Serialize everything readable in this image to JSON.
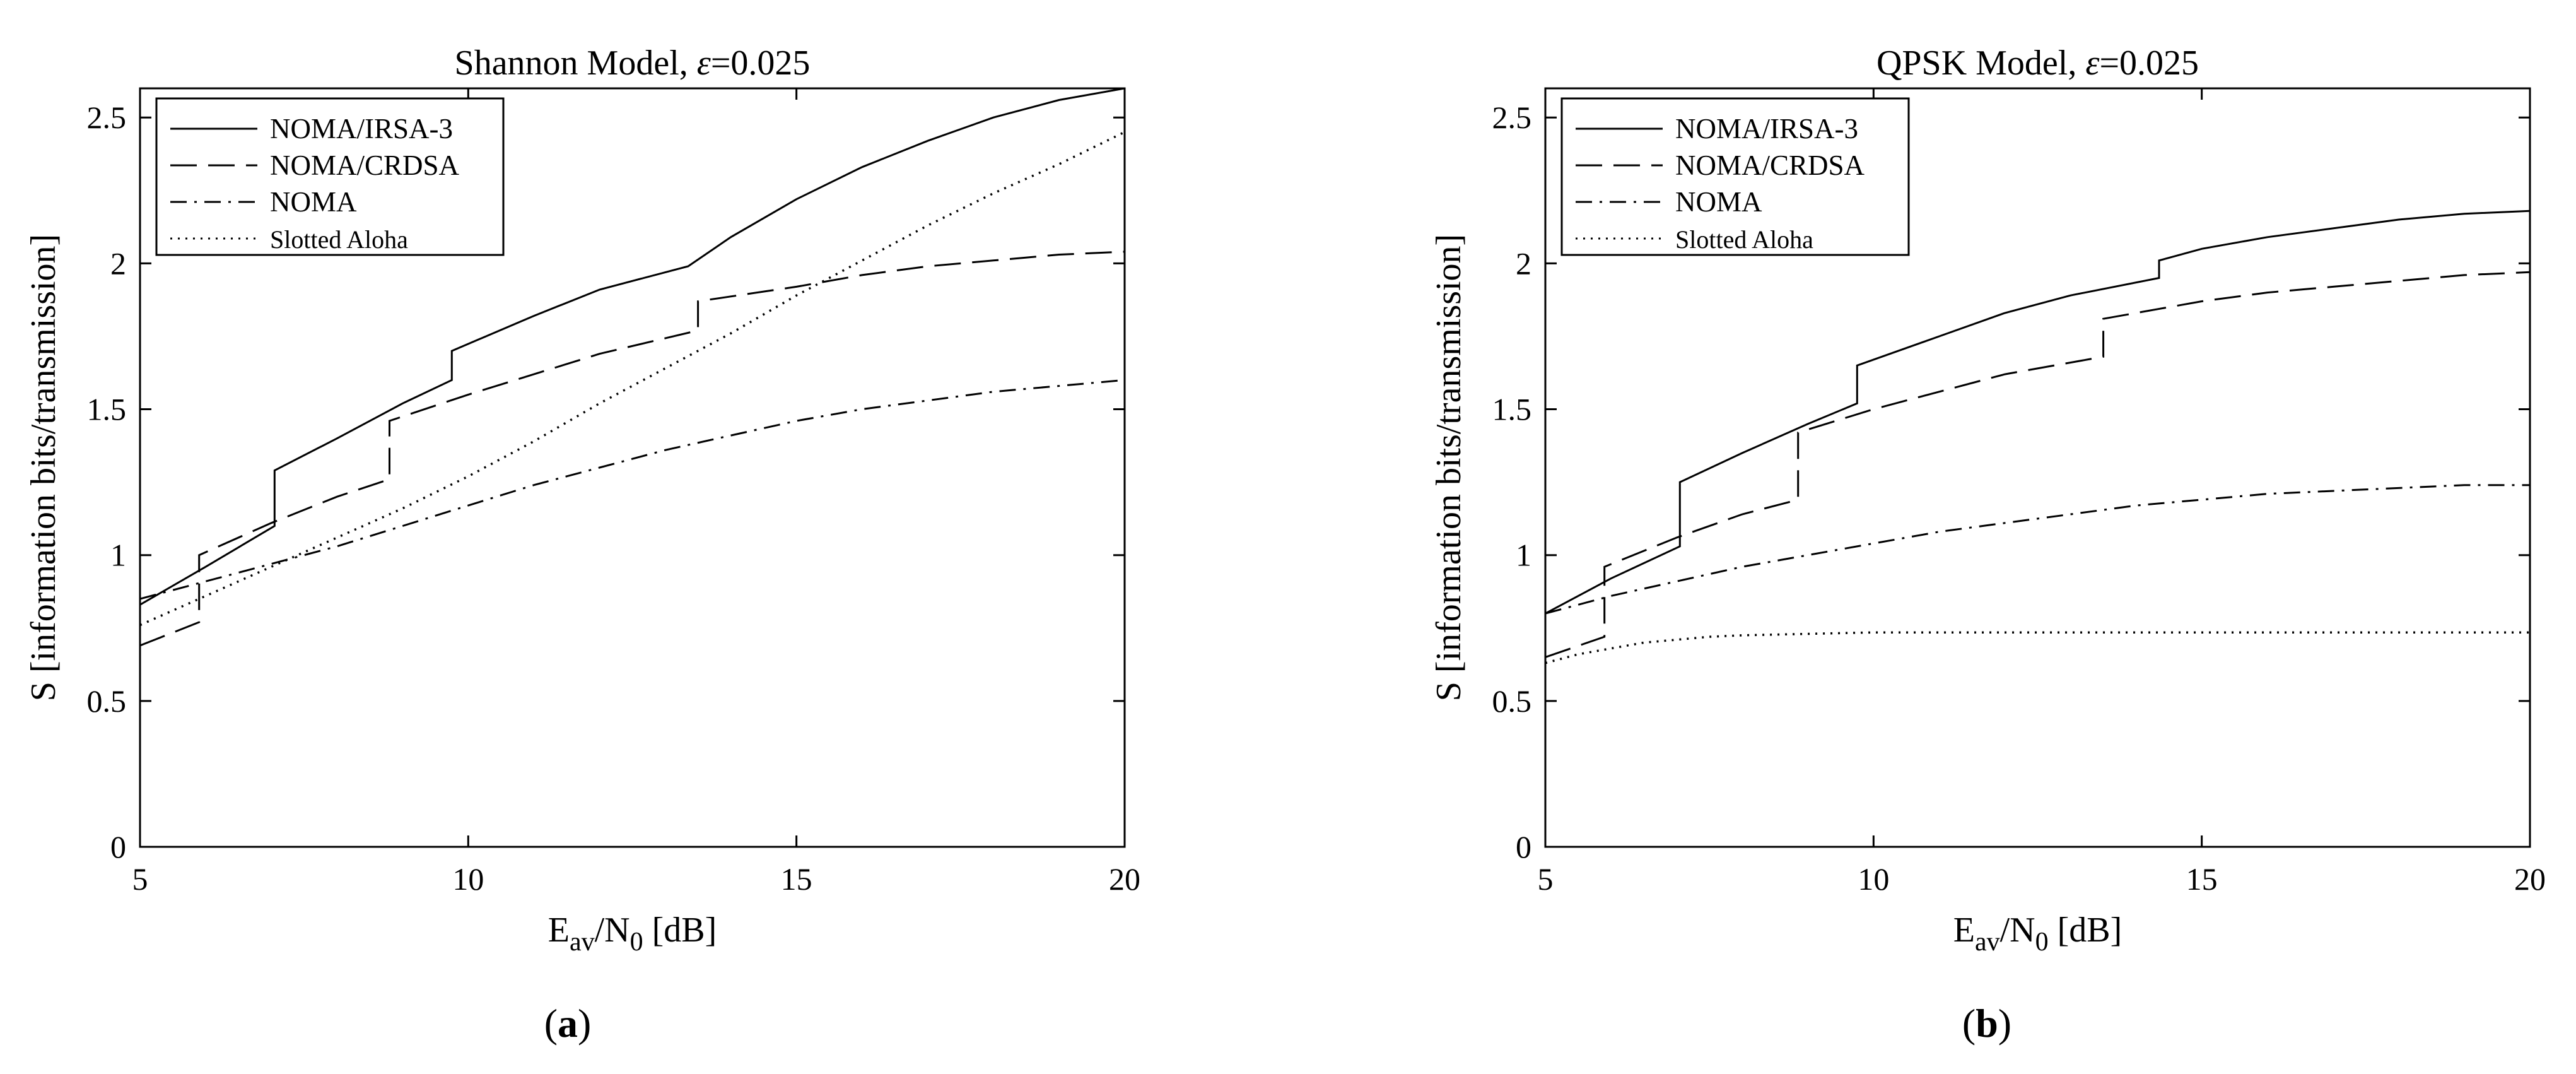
{
  "chart_data": [
    {
      "type": "line",
      "panel": "a",
      "title": "Shannon Model, ε=0.025",
      "title_prefix": "Shannon Model, ",
      "title_eps": "ε",
      "title_suffix": "=0.025",
      "xlabel_main": "E",
      "xlabel_sub1": "av",
      "xlabel_mid": "/N",
      "xlabel_sub2": "0",
      "xlabel_tail": " [dB]",
      "ylabel": "S [information bits/transmission]",
      "xlim": [
        5,
        20
      ],
      "ylim": [
        0,
        2.6
      ],
      "xticks": [
        5,
        10,
        15,
        20
      ],
      "yticks": [
        0,
        0.5,
        1,
        1.5,
        2,
        2.5
      ],
      "ytick_labels": [
        "0",
        "0.5",
        "1",
        "1.5",
        "2",
        "2.5"
      ],
      "legend_position": "top-left",
      "series": [
        {
          "name": "NOMA/IRSA-3",
          "style": "solid",
          "x": [
            5,
            6,
            7.05,
            7.05,
            8,
            9,
            9.75,
            9.75,
            11,
            12,
            13.35,
            14,
            15,
            16,
            17,
            18,
            19,
            20
          ],
          "y": [
            0.83,
            0.96,
            1.1,
            1.29,
            1.4,
            1.52,
            1.6,
            1.7,
            1.82,
            1.91,
            1.99,
            2.09,
            2.22,
            2.33,
            2.42,
            2.5,
            2.56,
            2.6
          ]
        },
        {
          "name": "NOMA/CRDSA",
          "style": "dashed",
          "x": [
            5,
            5.9,
            5.9,
            7,
            8,
            8.8,
            8.8,
            10,
            11,
            12,
            13.5,
            13.5,
            15,
            16,
            17,
            18,
            19,
            20
          ],
          "y": [
            0.69,
            0.77,
            1.0,
            1.11,
            1.2,
            1.26,
            1.46,
            1.55,
            1.62,
            1.69,
            1.77,
            1.87,
            1.92,
            1.96,
            1.99,
            2.01,
            2.03,
            2.04
          ]
        },
        {
          "name": "NOMA",
          "style": "dashdot",
          "x": [
            5,
            6,
            7,
            8,
            9,
            10,
            11,
            12,
            13,
            14,
            15,
            16,
            17,
            18,
            19,
            20
          ],
          "y": [
            0.85,
            0.91,
            0.97,
            1.03,
            1.1,
            1.17,
            1.24,
            1.3,
            1.36,
            1.41,
            1.46,
            1.5,
            1.53,
            1.56,
            1.58,
            1.6
          ]
        },
        {
          "name": "Slotted Aloha",
          "style": "dotted",
          "x": [
            5,
            6,
            7,
            8,
            9,
            10,
            11,
            12,
            13,
            14,
            15,
            16,
            17,
            18,
            19,
            20
          ],
          "y": [
            0.76,
            0.86,
            0.96,
            1.06,
            1.16,
            1.27,
            1.39,
            1.52,
            1.64,
            1.76,
            1.89,
            2.01,
            2.13,
            2.24,
            2.34,
            2.45
          ]
        }
      ]
    },
    {
      "type": "line",
      "panel": "b",
      "title": "QPSK Model, ε=0.025",
      "title_prefix": "QPSK Model, ",
      "title_eps": "ε",
      "title_suffix": "=0.025",
      "xlabel_main": "E",
      "xlabel_sub1": "av",
      "xlabel_mid": "/N",
      "xlabel_sub2": "0",
      "xlabel_tail": " [dB]",
      "ylabel": "S [information bits/transmission]",
      "xlim": [
        5,
        20
      ],
      "ylim": [
        0,
        2.6
      ],
      "xticks": [
        5,
        10,
        15,
        20
      ],
      "yticks": [
        0,
        0.5,
        1,
        1.5,
        2,
        2.5
      ],
      "ytick_labels": [
        "0",
        "0.5",
        "1",
        "1.5",
        "2",
        "2.5"
      ],
      "legend_position": "top-left",
      "series": [
        {
          "name": "NOMA/IRSA-3",
          "style": "solid",
          "x": [
            5,
            6,
            7.05,
            7.05,
            8,
            9,
            9.75,
            9.75,
            11,
            12,
            13,
            14.35,
            14.35,
            15,
            16,
            17,
            18,
            19,
            20
          ],
          "y": [
            0.8,
            0.92,
            1.03,
            1.25,
            1.35,
            1.45,
            1.52,
            1.65,
            1.75,
            1.83,
            1.89,
            1.95,
            2.01,
            2.05,
            2.09,
            2.12,
            2.15,
            2.17,
            2.18
          ]
        },
        {
          "name": "NOMA/CRDSA",
          "style": "dashed",
          "x": [
            5,
            5.9,
            5.9,
            7,
            8,
            8.85,
            8.85,
            10,
            11,
            12,
            13.5,
            13.5,
            15,
            16,
            17,
            18,
            19,
            20
          ],
          "y": [
            0.65,
            0.72,
            0.96,
            1.06,
            1.14,
            1.19,
            1.42,
            1.5,
            1.56,
            1.62,
            1.68,
            1.81,
            1.87,
            1.9,
            1.92,
            1.94,
            1.96,
            1.97
          ]
        },
        {
          "name": "NOMA",
          "style": "dashdot",
          "x": [
            5,
            6,
            7,
            8,
            9,
            10,
            11,
            12,
            13,
            14,
            15,
            16,
            17,
            18,
            19,
            20
          ],
          "y": [
            0.8,
            0.86,
            0.91,
            0.96,
            1.0,
            1.04,
            1.08,
            1.11,
            1.14,
            1.17,
            1.19,
            1.21,
            1.22,
            1.23,
            1.24,
            1.24
          ]
        },
        {
          "name": "Slotted Aloha",
          "style": "dotted",
          "x": [
            5,
            5.5,
            6,
            6.5,
            7,
            7.5,
            8,
            9,
            10,
            11,
            12,
            13,
            14,
            15,
            16,
            17,
            18,
            19,
            20
          ],
          "y": [
            0.63,
            0.66,
            0.68,
            0.7,
            0.71,
            0.72,
            0.725,
            0.73,
            0.735,
            0.735,
            0.735,
            0.735,
            0.735,
            0.735,
            0.735,
            0.735,
            0.735,
            0.735,
            0.735
          ]
        }
      ]
    }
  ]
}
